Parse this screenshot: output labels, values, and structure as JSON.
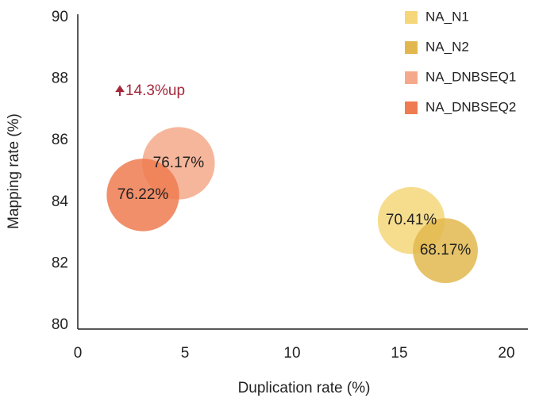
{
  "chart_data": {
    "type": "bubble",
    "xlabel": "Duplication rate (%)",
    "ylabel": "Mapping rate (%)",
    "xlim": [
      0,
      21
    ],
    "ylim": [
      80,
      90
    ],
    "xticks": [
      0,
      5,
      10,
      15,
      20
    ],
    "yticks": [
      80,
      82,
      84,
      86,
      88,
      90
    ],
    "annotation": {
      "text": "14.3%up",
      "x": 2,
      "y": 87.6,
      "color": "#a4283a"
    },
    "legend": "top-right",
    "series": [
      {
        "name": "NA_N1",
        "color": "#f5d77a",
        "x": [
          15.56
        ],
        "values": [
          83.4
        ],
        "sizes": [
          70.41
        ],
        "value_labels": [
          "70.41%"
        ]
      },
      {
        "name": "NA_N2",
        "color": "#e2b84e",
        "x": [
          17.15
        ],
        "values": [
          82.42
        ],
        "sizes": [
          68.17
        ],
        "value_labels": [
          "68.17%"
        ]
      },
      {
        "name": "NA_DNBSEQ1",
        "color": "#f5a98a",
        "x": [
          4.7
        ],
        "values": [
          85.26
        ],
        "sizes": [
          76.17
        ],
        "value_labels": [
          "76.17%"
        ]
      },
      {
        "name": "NA_DNBSEQ2",
        "color": "#ef7b50",
        "x": [
          3.04
        ],
        "values": [
          84.23
        ],
        "sizes": [
          76.22
        ],
        "value_labels": [
          "76.22%"
        ]
      }
    ]
  }
}
